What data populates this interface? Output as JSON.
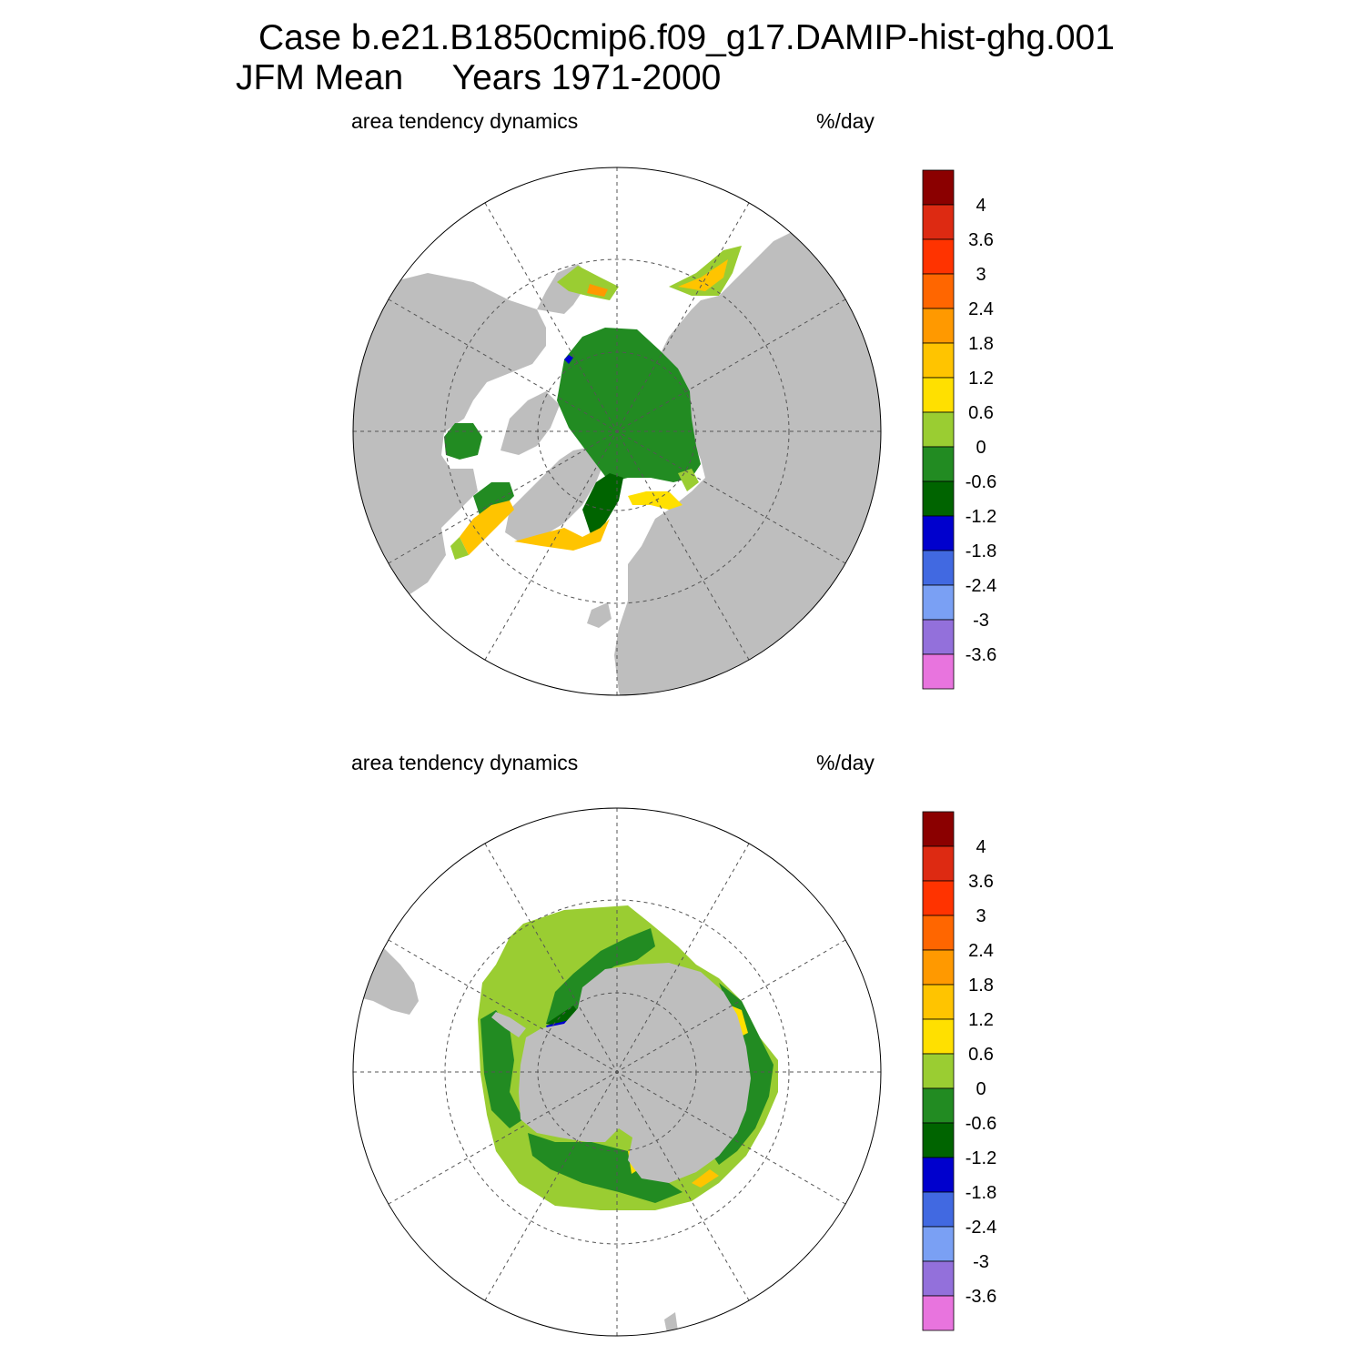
{
  "title": {
    "line1": "Case b.e21.B1850cmip6.f09_g17.DAMIP-hist-ghg.001",
    "line2": "JFM Mean     Years 1971-2000"
  },
  "panels": [
    {
      "id": "north",
      "variable": "area tendency dynamics",
      "units": "%/day",
      "hemisphere": "Northern",
      "projection": "polar stereographic",
      "land_color": "#bebebe",
      "ocean_color": "#ffffff"
    },
    {
      "id": "south",
      "variable": "area tendency dynamics",
      "units": "%/day",
      "hemisphere": "Southern",
      "projection": "polar stereographic",
      "land_color": "#bebebe",
      "ocean_color": "#ffffff"
    }
  ],
  "colorbar": {
    "colors": [
      "#e874de",
      "#9370db",
      "#7aa0f4",
      "#4169e1",
      "#0000cd",
      "#006400",
      "#228b22",
      "#9acd32",
      "#ffe000",
      "#ffc400",
      "#ff9900",
      "#ff6600",
      "#ff3300",
      "#dd2a12",
      "#8b0000"
    ],
    "labels": [
      "-3.6",
      "-3",
      "-2.4",
      "-1.8",
      "-1.2",
      "-0.6",
      "0",
      "0.6",
      "1.2",
      "1.8",
      "2.4",
      "3",
      "3.6",
      "4"
    ]
  }
}
